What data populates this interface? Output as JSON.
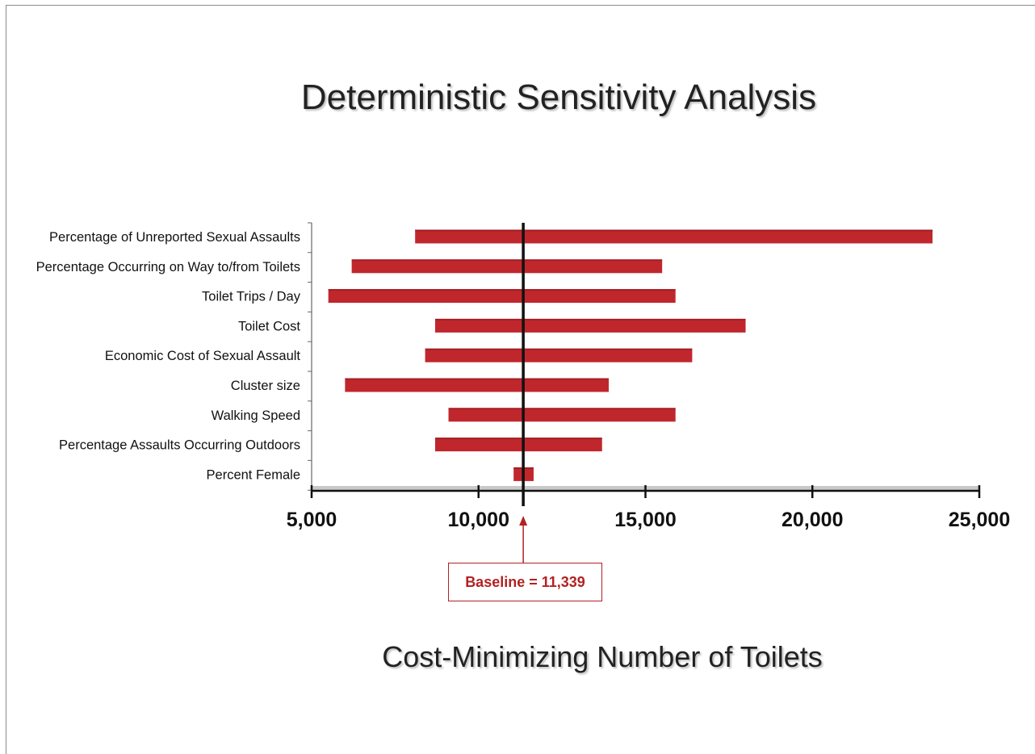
{
  "page": {
    "title": "Deterministic Sensitivity Analysis"
  },
  "chart_data": {
    "type": "bar",
    "orientation": "horizontal",
    "title": "Deterministic Sensitivity Analysis",
    "xlabel": "Cost-Minimizing Number of Toilets",
    "ylabel": "",
    "xlim": [
      5000,
      25000
    ],
    "xticks": [
      5000,
      10000,
      15000,
      20000,
      25000
    ],
    "xtick_labels": [
      "5,000",
      "10,000",
      "15,000",
      "20,000",
      "25,000"
    ],
    "baseline": 11339,
    "baseline_label": "Baseline = 11,339",
    "bar_color": "#c0272d",
    "categories": [
      "Percentage of Unreported Sexual Assaults",
      "Percentage Occurring on Way to/from Toilets",
      "Toilet Trips / Day",
      "Toilet Cost",
      "Economic Cost of Sexual Assault",
      "Cluster size",
      "Walking Speed",
      "Percentage Assaults Occurring Outdoors",
      "Percent Female"
    ],
    "ranges": [
      [
        8100,
        23600
      ],
      [
        6200,
        15500
      ],
      [
        5500,
        15900
      ],
      [
        8700,
        18000
      ],
      [
        8400,
        16400
      ],
      [
        6000,
        13900
      ],
      [
        9100,
        15900
      ],
      [
        8700,
        13700
      ],
      [
        11050,
        11650
      ]
    ],
    "grid": false
  }
}
